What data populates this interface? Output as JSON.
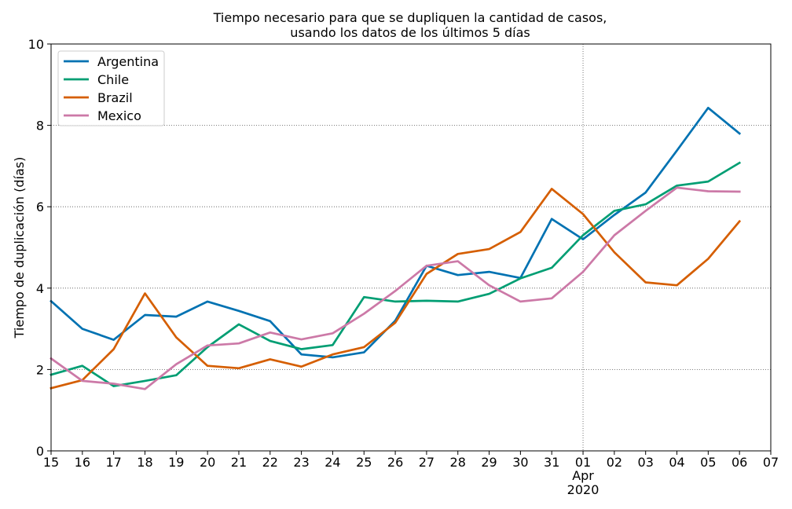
{
  "chart_data": {
    "type": "line",
    "title": [
      "Tiempo necesario para que se dupliquen la cantidad de casos,",
      "usando los datos de los últimos 5 días"
    ],
    "xlabel": "",
    "ylabel": "Tiempo de duplicación (días)",
    "x": [
      "2020-03-15",
      "2020-03-16",
      "2020-03-17",
      "2020-03-18",
      "2020-03-19",
      "2020-03-20",
      "2020-03-21",
      "2020-03-22",
      "2020-03-23",
      "2020-03-24",
      "2020-03-25",
      "2020-03-26",
      "2020-03-27",
      "2020-03-28",
      "2020-03-29",
      "2020-03-30",
      "2020-03-31",
      "2020-04-01",
      "2020-04-02",
      "2020-04-03",
      "2020-04-04",
      "2020-04-05",
      "2020-04-06"
    ],
    "xticks": [
      "15",
      "16",
      "17",
      "18",
      "19",
      "20",
      "21",
      "22",
      "23",
      "24",
      "25",
      "26",
      "27",
      "28",
      "29",
      "30",
      "31",
      "01",
      "02",
      "03",
      "04",
      "05",
      "06",
      "07"
    ],
    "xtick_secondary": {
      "tick": "01",
      "lines": [
        "Apr",
        "2020"
      ]
    },
    "ylim": [
      0,
      10
    ],
    "yticks": [
      "0",
      "2",
      "4",
      "6",
      "8",
      "10"
    ],
    "grid": "dotted, major ticks",
    "legend": "top-left",
    "series": [
      {
        "name": "Argentina",
        "color": "#0072b2",
        "values": [
          3.68,
          3.0,
          2.73,
          3.34,
          3.3,
          3.67,
          3.44,
          3.19,
          2.37,
          2.3,
          2.42,
          3.2,
          4.55,
          4.32,
          4.4,
          4.25,
          5.7,
          5.2,
          5.8,
          6.35,
          7.38,
          8.43,
          7.8
        ]
      },
      {
        "name": "Chile",
        "color": "#009e73",
        "values": [
          1.87,
          2.09,
          1.59,
          1.72,
          1.86,
          2.55,
          3.11,
          2.7,
          2.5,
          2.6,
          3.78,
          3.67,
          3.69,
          3.67,
          3.86,
          4.24,
          4.5,
          5.3,
          5.9,
          6.06,
          6.52,
          6.62,
          7.08
        ]
      },
      {
        "name": "Brazil",
        "color": "#d55e00",
        "values": [
          1.54,
          1.74,
          2.5,
          3.87,
          2.79,
          2.09,
          2.03,
          2.25,
          2.07,
          2.37,
          2.55,
          3.15,
          4.35,
          4.84,
          4.96,
          5.38,
          6.44,
          5.82,
          4.88,
          4.14,
          4.07,
          4.72,
          5.64
        ]
      },
      {
        "name": "Mexico",
        "color": "#cc79a7",
        "values": [
          2.27,
          1.72,
          1.65,
          1.52,
          2.13,
          2.59,
          2.64,
          2.91,
          2.74,
          2.89,
          3.37,
          3.93,
          4.55,
          4.66,
          4.07,
          3.67,
          3.75,
          4.4,
          5.3,
          5.9,
          6.47,
          6.38,
          6.37
        ]
      }
    ]
  }
}
